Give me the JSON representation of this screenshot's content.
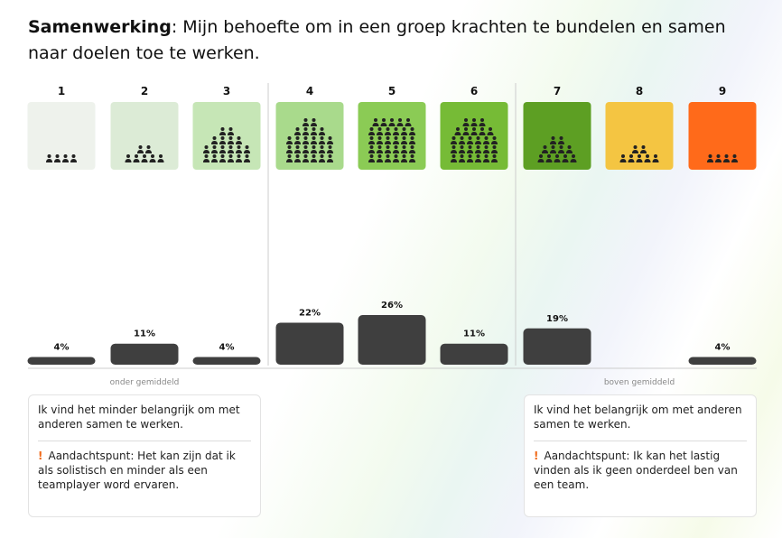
{
  "header": {
    "title_bold": "Samenwerking",
    "title_rest": ": Mijn behoefte om in een groep krachten te bundelen en samen naar doelen toe te werken."
  },
  "chart_data": {
    "type": "bar",
    "categories": [
      "1",
      "2",
      "3",
      "4",
      "5",
      "6",
      "7",
      "8",
      "9"
    ],
    "values": [
      4,
      11,
      4,
      22,
      26,
      11,
      19,
      null,
      4
    ],
    "value_labels": [
      "4%",
      "11%",
      "4%",
      "22%",
      "26%",
      "11%",
      "19%",
      null,
      "4%"
    ],
    "color": "#3f3f3f",
    "tile_colors": [
      "#eef2ec",
      "#dcebd6",
      "#c6e6b6",
      "#a9da8c",
      "#8bcb55",
      "#76bb36",
      "#5d9f23",
      "#f4c542",
      "#ff6a1a"
    ],
    "group_labels": [
      "onder gemiddeld",
      "boven gemiddeld"
    ]
  },
  "notes": [
    {
      "text": "Ik vind het minder belangrijk om met anderen samen te werken.",
      "attention": "Aandachtspunt: Het kan zijn dat ik als solistisch en minder als een teamplayer word ervaren."
    },
    {
      "text": "Ik vind het belangrijk om met anderen samen te werken.",
      "attention": "Aandachtspunt: Ik kan het lastig vinden als ik geen onderdeel ben van een team."
    }
  ]
}
